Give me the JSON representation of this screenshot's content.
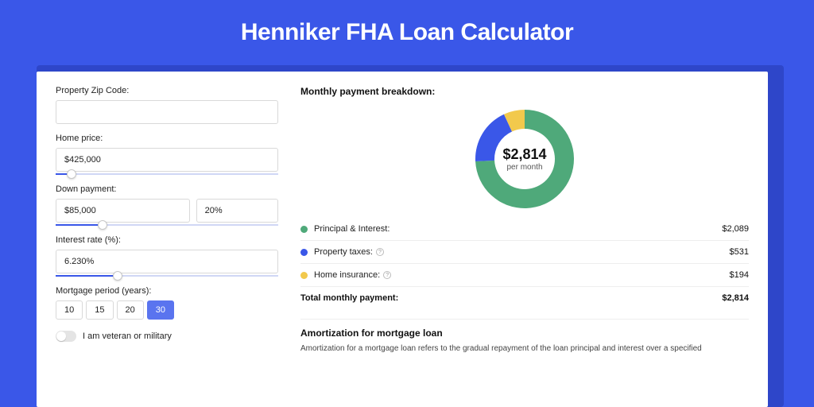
{
  "page": {
    "title": "Henniker FHA Loan Calculator",
    "bg_color": "#3a57e8",
    "shadow_color": "#2e46c9",
    "card_bg": "#ffffff"
  },
  "form": {
    "zip": {
      "label": "Property Zip Code:",
      "value": ""
    },
    "home_price": {
      "label": "Home price:",
      "value": "$425,000",
      "slider_pct": 7
    },
    "down_payment": {
      "label": "Down payment:",
      "amount": "$85,000",
      "percent": "20%",
      "slider_pct": 21
    },
    "interest": {
      "label": "Interest rate (%):",
      "value": "6.230%",
      "slider_pct": 28
    },
    "period": {
      "label": "Mortgage period (years):",
      "options": [
        "10",
        "15",
        "20",
        "30"
      ],
      "selected_index": 3
    },
    "veteran": {
      "label": "I am veteran or military",
      "checked": false
    }
  },
  "breakdown": {
    "title": "Monthly payment breakdown:",
    "donut": {
      "type": "donut",
      "center_amount": "$2,814",
      "center_sub": "per month",
      "slices": [
        {
          "label": "Principal & Interest",
          "value": 2089,
          "color": "#4fa97a"
        },
        {
          "label": "Property taxes",
          "value": 531,
          "color": "#3a57e8"
        },
        {
          "label": "Home insurance",
          "value": 194,
          "color": "#f2c94c"
        }
      ],
      "inner_radius": 38,
      "outer_radius": 62,
      "background_color": "#ffffff"
    },
    "items": [
      {
        "dot": "#4fa97a",
        "label": "Principal & Interest:",
        "info": false,
        "value": "$2,089"
      },
      {
        "dot": "#3a57e8",
        "label": "Property taxes:",
        "info": true,
        "value": "$531"
      },
      {
        "dot": "#f2c94c",
        "label": "Home insurance:",
        "info": true,
        "value": "$194"
      }
    ],
    "total": {
      "label": "Total monthly payment:",
      "value": "$2,814"
    }
  },
  "amortization": {
    "title": "Amortization for mortgage loan",
    "text": "Amortization for a mortgage loan refers to the gradual repayment of the loan principal and interest over a specified"
  }
}
